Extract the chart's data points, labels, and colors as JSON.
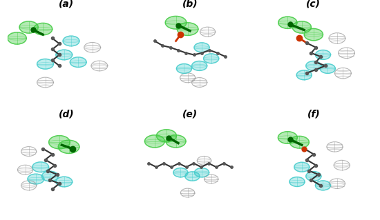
{
  "panels": [
    "(a)",
    "(b)",
    "(c)",
    "(d)",
    "(e)",
    "(f)"
  ],
  "nrows": 2,
  "ncols": 3,
  "figsize": [
    5.5,
    3.19
  ],
  "dpi": 100,
  "bg_color": "#ffffff",
  "label_fontsize": 10,
  "label_fontweight": "bold",
  "label_fontstyle": "italic",
  "molecule_color": "#444444",
  "sphere_sizes": {
    "green": 0.09,
    "cyan": 0.07,
    "gray": 0.06
  },
  "green_color": "#44cc44",
  "cyan_color": "#44cccc",
  "gray_color": "#aaaaaa",
  "red_color": "#cc3300",
  "dark_green_color": "#006600"
}
